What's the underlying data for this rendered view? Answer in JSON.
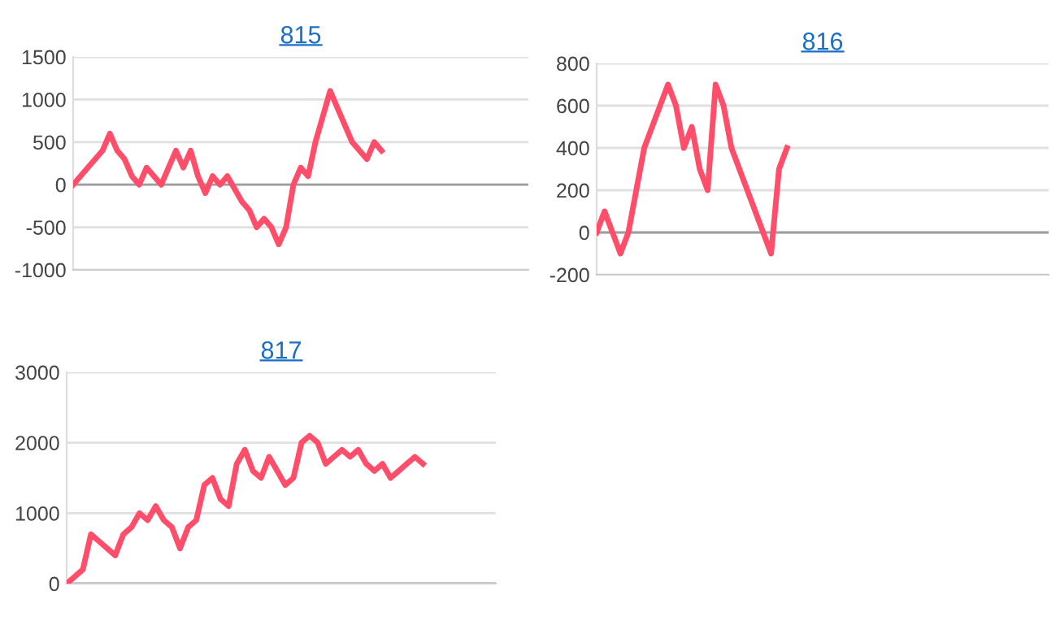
{
  "chart_data": [
    {
      "type": "line",
      "title": "815",
      "categories": [
        null,
        null,
        null,
        null,
        null,
        null,
        null,
        null,
        null,
        null,
        null,
        null,
        null,
        null,
        null,
        null,
        null,
        null,
        null,
        null,
        null,
        null,
        null,
        null,
        null,
        null,
        null,
        null,
        null,
        null,
        null,
        null,
        null,
        null,
        null,
        null,
        null,
        null,
        null,
        null,
        null,
        null,
        null,
        null,
        null,
        null,
        null,
        null,
        null,
        null,
        null,
        null,
        null,
        null,
        null,
        null,
        null,
        null,
        null,
        null,
        null,
        null,
        null
      ],
      "series": [
        {
          "color": "#ff4d6a",
          "values": [
            0,
            100,
            200,
            300,
            400,
            600,
            400,
            300,
            100,
            0,
            200,
            100,
            0,
            200,
            400,
            200,
            400,
            100,
            -100,
            100,
            0,
            100,
            -50,
            -200,
            -300,
            -500,
            -400,
            -500,
            -700,
            -500,
            0,
            200,
            100,
            500,
            800,
            1100,
            900,
            700,
            500,
            400,
            300,
            500,
            400,
            null,
            null,
            null,
            null,
            null,
            null,
            null,
            null,
            null,
            null,
            null,
            null,
            null,
            null,
            null,
            null,
            null,
            null,
            null,
            null
          ]
        }
      ],
      "ylim": [
        -1000,
        1500
      ],
      "yticks": [
        -1000,
        -500,
        0,
        500,
        1000,
        1500
      ],
      "grid": "y",
      "tick_labels": "y",
      "marker": "none",
      "line_style": "solid",
      "ref_lines": [
        {
          "axis": "y",
          "value": 0,
          "color": "#9e9e9e"
        }
      ]
    },
    {
      "type": "line",
      "title": "816",
      "categories": [
        null,
        null,
        null,
        null,
        null,
        null,
        null,
        null,
        null,
        null,
        null,
        null,
        null,
        null,
        null,
        null,
        null,
        null,
        null,
        null,
        null,
        null,
        null,
        null,
        null,
        null,
        null,
        null,
        null,
        null,
        null,
        null,
        null,
        null,
        null,
        null,
        null,
        null,
        null,
        null,
        null,
        null,
        null,
        null,
        null,
        null,
        null,
        null,
        null,
        null,
        null,
        null,
        null,
        null,
        null,
        null,
        null,
        null
      ],
      "series": [
        {
          "color": "#ff4d6a",
          "values": [
            0,
            100,
            0,
            -100,
            0,
            200,
            400,
            500,
            600,
            700,
            600,
            400,
            500,
            300,
            200,
            700,
            600,
            400,
            300,
            200,
            100,
            0,
            -100,
            300,
            400,
            null,
            null,
            null,
            null,
            null,
            null,
            null,
            null,
            null,
            null,
            null,
            null,
            null,
            null,
            null,
            null,
            null,
            null,
            null,
            null,
            null,
            null,
            null,
            null,
            null,
            null,
            null,
            null,
            null,
            null,
            null,
            null,
            null
          ]
        }
      ],
      "ylim": [
        -200,
        800
      ],
      "yticks": [
        -200,
        0,
        200,
        400,
        600,
        800
      ],
      "grid": "y",
      "tick_labels": "y",
      "marker": "none",
      "line_style": "solid",
      "ref_lines": [
        {
          "axis": "y",
          "value": 0,
          "color": "#9e9e9e"
        }
      ]
    },
    {
      "type": "line",
      "title": "817",
      "categories": [
        null,
        null,
        null,
        null,
        null,
        null,
        null,
        null,
        null,
        null,
        null,
        null,
        null,
        null,
        null,
        null,
        null,
        null,
        null,
        null,
        null,
        null,
        null,
        null,
        null,
        null,
        null,
        null,
        null,
        null,
        null,
        null,
        null,
        null,
        null,
        null,
        null,
        null,
        null,
        null,
        null,
        null,
        null,
        null,
        null,
        null,
        null,
        null,
        null,
        null,
        null,
        null,
        null,
        null
      ],
      "series": [
        {
          "color": "#ff4d6a",
          "values": [
            0,
            100,
            200,
            700,
            600,
            500,
            400,
            700,
            800,
            1000,
            900,
            1100,
            900,
            800,
            500,
            800,
            900,
            1400,
            1500,
            1200,
            1100,
            1700,
            1900,
            1600,
            1500,
            1800,
            1600,
            1400,
            1500,
            2000,
            2100,
            2000,
            1700,
            1800,
            1900,
            1800,
            1900,
            1700,
            1600,
            1700,
            1500,
            1600,
            1700,
            1800,
            1700,
            null,
            null,
            null,
            null,
            null,
            null,
            null,
            null,
            null
          ]
        }
      ],
      "ylim": [
        0,
        3000
      ],
      "yticks": [
        0,
        1000,
        2000,
        3000
      ],
      "grid": "y",
      "tick_labels": "y",
      "marker": "none",
      "line_style": "solid",
      "ref_lines": [
        {
          "axis": "y",
          "value": 0,
          "color": "#9e9e9e"
        }
      ]
    }
  ]
}
